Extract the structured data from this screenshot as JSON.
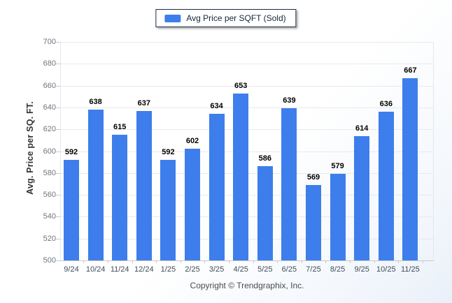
{
  "chart": {
    "legend": {
      "label": "Avg Price per SQFT (Sold)"
    },
    "y_axis_title": "Avg. Price per SQ. FT.",
    "footer": "Copyright © Trendgraphix, Inc.",
    "colors": {
      "bar": "#3d7eec",
      "gridline": "#e9e9e9",
      "baseline": "#c9c9c9",
      "data_label": "#000000",
      "x_tick_label": "#404c59",
      "y_tick_label": "#6b7681",
      "legend_border": "#1d2c44"
    }
  },
  "chart_data": {
    "type": "bar",
    "title": "Avg Price per SQFT (Sold)",
    "series": [
      {
        "name": "Avg Price per SQFT (Sold)",
        "color": "#3d7eec",
        "values": [
          592,
          638,
          615,
          637,
          592,
          602,
          634,
          653,
          586,
          639,
          569,
          579,
          614,
          636,
          667
        ]
      }
    ],
    "categories": [
      "9/24",
      "10/24",
      "11/24",
      "12/24",
      "1/25",
      "2/25",
      "3/25",
      "4/25",
      "5/25",
      "6/25",
      "7/25",
      "8/25",
      "9/25",
      "10/25",
      "11/25"
    ],
    "xlabel": "",
    "ylabel": "Avg. Price per SQ. FT.",
    "ylim": [
      500,
      700
    ],
    "ytick_step": 20,
    "grid": true,
    "data_labels": true,
    "legend_position": "top-center",
    "footer": "Copyright © Trendgraphix, Inc."
  }
}
